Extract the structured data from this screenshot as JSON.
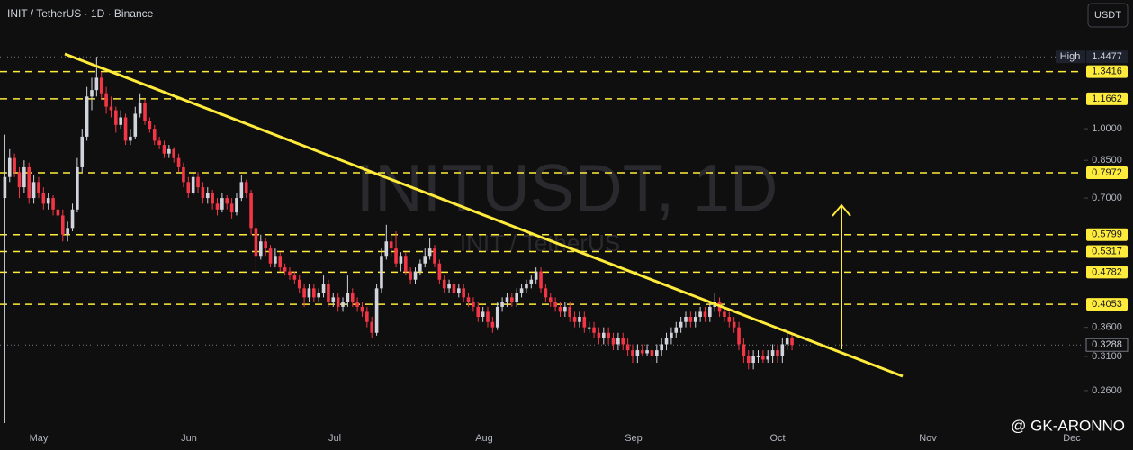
{
  "chart_data": {
    "type": "candlestick",
    "header": "INIT / TetherUS · 1D · Binance",
    "currency_button": "USDT",
    "watermark": "INITUSDT, 1D",
    "watermark_sub": "INIT / TetherUS",
    "credit": "@ GK-ARONNO",
    "up_color": "#d1d4dc",
    "down_color": "#f23645",
    "level_color": "#ffeb3b",
    "log_scale": true,
    "ylim": [
      0.22,
      1.94
    ],
    "yticks": [
      {
        "value": 1,
        "label": "1.0000"
      },
      {
        "value": 0.85,
        "label": "0.8500"
      },
      {
        "value": 0.7,
        "label": "0.7000"
      },
      {
        "value": 0.36,
        "label": "0.3600"
      },
      {
        "value": 0.31,
        "label": "0.3100"
      },
      {
        "value": 0.26,
        "label": "0.2600"
      }
    ],
    "xticks": [
      "May",
      "Jun",
      "Jul",
      "Aug",
      "Sep",
      "Oct",
      "Nov",
      "Dec"
    ],
    "high_label": "High",
    "high": 1.4477,
    "last": 0.3288,
    "levels": [
      1.3416,
      1.1662,
      0.7972,
      0.5799,
      0.5317,
      0.4782,
      0.4053
    ],
    "candles": [
      [
        0.7,
        0.97,
        0.22,
        0.78
      ],
      [
        0.78,
        0.9,
        0.76,
        0.86
      ],
      [
        0.86,
        0.88,
        0.78,
        0.8
      ],
      [
        0.8,
        0.82,
        0.7,
        0.74
      ],
      [
        0.74,
        0.85,
        0.72,
        0.82
      ],
      [
        0.82,
        0.84,
        0.68,
        0.7
      ],
      [
        0.7,
        0.79,
        0.68,
        0.76
      ],
      [
        0.76,
        0.78,
        0.7,
        0.72
      ],
      [
        0.72,
        0.74,
        0.66,
        0.68
      ],
      [
        0.68,
        0.72,
        0.66,
        0.7
      ],
      [
        0.7,
        0.71,
        0.64,
        0.66
      ],
      [
        0.66,
        0.68,
        0.62,
        0.64
      ],
      [
        0.64,
        0.66,
        0.56,
        0.58
      ],
      [
        0.58,
        0.62,
        0.56,
        0.6
      ],
      [
        0.6,
        0.68,
        0.59,
        0.66
      ],
      [
        0.66,
        0.86,
        0.65,
        0.82
      ],
      [
        0.82,
        1.0,
        0.8,
        0.96
      ],
      [
        0.96,
        1.24,
        0.94,
        1.18
      ],
      [
        1.18,
        1.3,
        1.1,
        1.22
      ],
      [
        1.22,
        1.4477,
        1.18,
        1.3
      ],
      [
        1.3,
        1.34,
        1.16,
        1.2
      ],
      [
        1.2,
        1.24,
        1.08,
        1.12
      ],
      [
        1.12,
        1.18,
        1.06,
        1.1
      ],
      [
        1.1,
        1.12,
        0.98,
        1.02
      ],
      [
        1.02,
        1.1,
        1.0,
        1.06
      ],
      [
        1.06,
        1.08,
        0.92,
        0.94
      ],
      [
        0.94,
        1.0,
        0.92,
        0.96
      ],
      [
        0.96,
        1.12,
        0.95,
        1.08
      ],
      [
        1.08,
        1.2,
        1.06,
        1.14
      ],
      [
        1.14,
        1.16,
        1.02,
        1.04
      ],
      [
        1.04,
        1.06,
        0.98,
        1.0
      ],
      [
        1.0,
        1.02,
        0.92,
        0.94
      ],
      [
        0.94,
        0.96,
        0.9,
        0.92
      ],
      [
        0.92,
        0.94,
        0.86,
        0.88
      ],
      [
        0.88,
        0.92,
        0.86,
        0.9
      ],
      [
        0.9,
        0.91,
        0.84,
        0.86
      ],
      [
        0.86,
        0.88,
        0.8,
        0.82
      ],
      [
        0.82,
        0.84,
        0.74,
        0.76
      ],
      [
        0.76,
        0.78,
        0.7,
        0.72
      ],
      [
        0.72,
        0.8,
        0.71,
        0.78
      ],
      [
        0.78,
        0.8,
        0.72,
        0.74
      ],
      [
        0.74,
        0.76,
        0.68,
        0.7
      ],
      [
        0.7,
        0.74,
        0.68,
        0.72
      ],
      [
        0.72,
        0.73,
        0.66,
        0.68
      ],
      [
        0.68,
        0.7,
        0.64,
        0.66
      ],
      [
        0.66,
        0.72,
        0.65,
        0.7
      ],
      [
        0.7,
        0.71,
        0.66,
        0.68
      ],
      [
        0.68,
        0.7,
        0.63,
        0.65
      ],
      [
        0.65,
        0.72,
        0.64,
        0.7
      ],
      [
        0.7,
        0.79,
        0.69,
        0.76
      ],
      [
        0.76,
        0.77,
        0.7,
        0.72
      ],
      [
        0.72,
        0.73,
        0.58,
        0.6
      ],
      [
        0.6,
        0.62,
        0.48,
        0.52
      ],
      [
        0.52,
        0.58,
        0.51,
        0.56
      ],
      [
        0.56,
        0.57,
        0.52,
        0.54
      ],
      [
        0.54,
        0.55,
        0.49,
        0.5
      ],
      [
        0.5,
        0.54,
        0.49,
        0.52
      ],
      [
        0.52,
        0.53,
        0.48,
        0.49
      ],
      [
        0.49,
        0.5,
        0.47,
        0.48
      ],
      [
        0.48,
        0.49,
        0.46,
        0.47
      ],
      [
        0.47,
        0.48,
        0.45,
        0.46
      ],
      [
        0.46,
        0.47,
        0.43,
        0.44
      ],
      [
        0.44,
        0.45,
        0.4,
        0.42
      ],
      [
        0.42,
        0.45,
        0.41,
        0.44
      ],
      [
        0.44,
        0.45,
        0.41,
        0.42
      ],
      [
        0.42,
        0.44,
        0.41,
        0.43
      ],
      [
        0.43,
        0.47,
        0.42,
        0.45
      ],
      [
        0.45,
        0.46,
        0.4,
        0.41
      ],
      [
        0.41,
        0.43,
        0.4,
        0.42
      ],
      [
        0.42,
        0.43,
        0.39,
        0.4
      ],
      [
        0.4,
        0.42,
        0.39,
        0.41
      ],
      [
        0.41,
        0.47,
        0.4,
        0.43
      ],
      [
        0.43,
        0.44,
        0.4,
        0.41
      ],
      [
        0.41,
        0.42,
        0.39,
        0.4
      ],
      [
        0.4,
        0.41,
        0.38,
        0.39
      ],
      [
        0.39,
        0.4,
        0.36,
        0.37
      ],
      [
        0.37,
        0.38,
        0.34,
        0.35
      ],
      [
        0.35,
        0.45,
        0.345,
        0.44
      ],
      [
        0.44,
        0.54,
        0.43,
        0.52
      ],
      [
        0.52,
        0.61,
        0.51,
        0.56
      ],
      [
        0.56,
        0.58,
        0.52,
        0.54
      ],
      [
        0.54,
        0.59,
        0.49,
        0.5
      ],
      [
        0.5,
        0.53,
        0.48,
        0.52
      ],
      [
        0.52,
        0.53,
        0.47,
        0.48
      ],
      [
        0.48,
        0.49,
        0.45,
        0.46
      ],
      [
        0.46,
        0.49,
        0.45,
        0.48
      ],
      [
        0.48,
        0.51,
        0.47,
        0.5
      ],
      [
        0.5,
        0.54,
        0.49,
        0.52
      ],
      [
        0.52,
        0.57,
        0.51,
        0.54
      ],
      [
        0.54,
        0.55,
        0.49,
        0.5
      ],
      [
        0.5,
        0.51,
        0.45,
        0.46
      ],
      [
        0.46,
        0.47,
        0.43,
        0.44
      ],
      [
        0.44,
        0.46,
        0.43,
        0.45
      ],
      [
        0.45,
        0.46,
        0.42,
        0.43
      ],
      [
        0.43,
        0.45,
        0.42,
        0.44
      ],
      [
        0.44,
        0.45,
        0.41,
        0.42
      ],
      [
        0.42,
        0.43,
        0.4,
        0.41
      ],
      [
        0.41,
        0.42,
        0.39,
        0.4
      ],
      [
        0.4,
        0.41,
        0.37,
        0.38
      ],
      [
        0.38,
        0.4,
        0.37,
        0.39
      ],
      [
        0.39,
        0.4,
        0.36,
        0.37
      ],
      [
        0.37,
        0.38,
        0.35,
        0.36
      ],
      [
        0.36,
        0.41,
        0.355,
        0.4
      ],
      [
        0.4,
        0.42,
        0.39,
        0.41
      ],
      [
        0.41,
        0.43,
        0.4,
        0.42
      ],
      [
        0.42,
        0.43,
        0.4,
        0.41
      ],
      [
        0.41,
        0.44,
        0.4,
        0.43
      ],
      [
        0.43,
        0.45,
        0.42,
        0.44
      ],
      [
        0.44,
        0.46,
        0.43,
        0.45
      ],
      [
        0.45,
        0.47,
        0.44,
        0.46
      ],
      [
        0.46,
        0.49,
        0.45,
        0.48
      ],
      [
        0.48,
        0.49,
        0.43,
        0.44
      ],
      [
        0.44,
        0.45,
        0.41,
        0.42
      ],
      [
        0.42,
        0.43,
        0.4,
        0.41
      ],
      [
        0.41,
        0.42,
        0.39,
        0.4
      ],
      [
        0.4,
        0.41,
        0.38,
        0.39
      ],
      [
        0.39,
        0.41,
        0.38,
        0.4
      ],
      [
        0.4,
        0.41,
        0.37,
        0.38
      ],
      [
        0.38,
        0.39,
        0.36,
        0.37
      ],
      [
        0.37,
        0.39,
        0.36,
        0.38
      ],
      [
        0.38,
        0.39,
        0.35,
        0.36
      ],
      [
        0.36,
        0.37,
        0.35,
        0.36
      ],
      [
        0.36,
        0.37,
        0.34,
        0.35
      ],
      [
        0.35,
        0.36,
        0.33,
        0.34
      ],
      [
        0.34,
        0.36,
        0.33,
        0.35
      ],
      [
        0.35,
        0.36,
        0.33,
        0.34
      ],
      [
        0.34,
        0.35,
        0.32,
        0.33
      ],
      [
        0.33,
        0.35,
        0.32,
        0.34
      ],
      [
        0.34,
        0.35,
        0.32,
        0.33
      ],
      [
        0.33,
        0.34,
        0.31,
        0.32
      ],
      [
        0.32,
        0.33,
        0.3,
        0.31
      ],
      [
        0.31,
        0.33,
        0.3,
        0.32
      ],
      [
        0.32,
        0.33,
        0.31,
        0.315
      ],
      [
        0.315,
        0.33,
        0.31,
        0.32
      ],
      [
        0.32,
        0.33,
        0.3,
        0.31
      ],
      [
        0.31,
        0.33,
        0.3,
        0.32
      ],
      [
        0.32,
        0.34,
        0.31,
        0.33
      ],
      [
        0.33,
        0.35,
        0.32,
        0.34
      ],
      [
        0.34,
        0.36,
        0.33,
        0.35
      ],
      [
        0.35,
        0.37,
        0.34,
        0.36
      ],
      [
        0.36,
        0.38,
        0.35,
        0.37
      ],
      [
        0.37,
        0.39,
        0.36,
        0.38
      ],
      [
        0.38,
        0.39,
        0.36,
        0.37
      ],
      [
        0.37,
        0.39,
        0.36,
        0.38
      ],
      [
        0.38,
        0.4,
        0.37,
        0.39
      ],
      [
        0.39,
        0.4,
        0.37,
        0.38
      ],
      [
        0.38,
        0.41,
        0.37,
        0.4
      ],
      [
        0.4,
        0.43,
        0.39,
        0.41
      ],
      [
        0.41,
        0.42,
        0.38,
        0.39
      ],
      [
        0.39,
        0.4,
        0.37,
        0.38
      ],
      [
        0.38,
        0.39,
        0.36,
        0.37
      ],
      [
        0.37,
        0.38,
        0.35,
        0.36
      ],
      [
        0.36,
        0.37,
        0.32,
        0.33
      ],
      [
        0.33,
        0.34,
        0.3,
        0.31
      ],
      [
        0.31,
        0.32,
        0.29,
        0.3
      ],
      [
        0.3,
        0.32,
        0.29,
        0.31
      ],
      [
        0.31,
        0.32,
        0.3,
        0.31
      ],
      [
        0.31,
        0.32,
        0.3,
        0.305
      ],
      [
        0.305,
        0.32,
        0.3,
        0.31
      ],
      [
        0.31,
        0.33,
        0.3,
        0.32
      ],
      [
        0.32,
        0.33,
        0.3,
        0.31
      ],
      [
        0.31,
        0.34,
        0.3,
        0.33
      ],
      [
        0.33,
        0.35,
        0.32,
        0.34
      ],
      [
        0.34,
        0.35,
        0.32,
        0.3288
      ]
    ]
  }
}
